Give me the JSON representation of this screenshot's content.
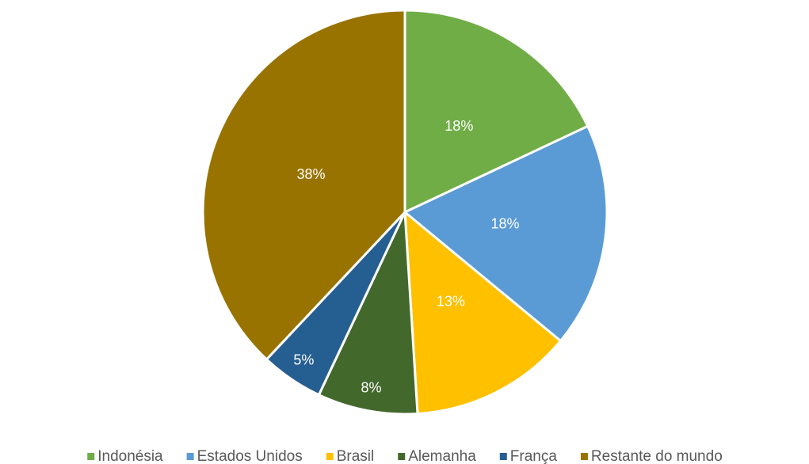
{
  "chart_data": {
    "type": "pie",
    "categories": [
      "Indonésia",
      "Estados Unidos",
      "Brasil",
      "Alemanha",
      "França",
      "Restante do mundo"
    ],
    "values": [
      18,
      18,
      13,
      8,
      5,
      38
    ],
    "value_labels": [
      "18%",
      "18%",
      "13%",
      "8%",
      "5%",
      "38%"
    ],
    "colors": [
      "#70ad47",
      "#5b9bd5",
      "#ffc000",
      "#43682b",
      "#255e91",
      "#997300"
    ],
    "legend": "bottom"
  }
}
